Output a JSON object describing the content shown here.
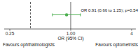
{
  "chart_data": {
    "type": "forest",
    "x_label": "OR (95% CI)",
    "values": [
      0.91
    ],
    "ci_low": [
      0.66
    ],
    "ci_high": [
      1.25
    ],
    "annotation": "OR 0.91 (0.66 to 1.25); p=0.54",
    "color": "#4caf50",
    "log": "x",
    "xlim": [
      0.22,
      4.4
    ],
    "xticks": [
      {
        "value": 0.25,
        "label": "0.25"
      },
      {
        "value": 1,
        "label": "1.00"
      },
      4
    ],
    "null_line": 1,
    "margin_line": 0.4,
    "favours_left": "Favours ophthalmologists",
    "favours_right": "Favours optometrists"
  }
}
